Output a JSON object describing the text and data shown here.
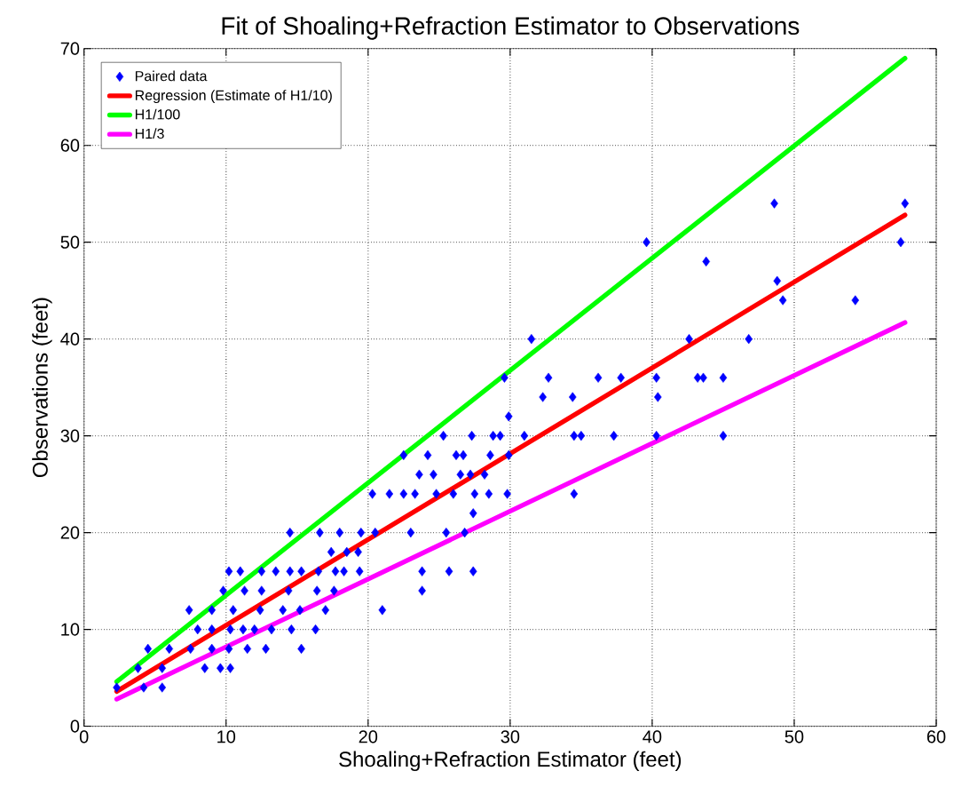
{
  "chart_data": {
    "type": "scatter",
    "title": "Fit of Shoaling+Refraction Estimator to Observations",
    "xlabel": "Shoaling+Refraction Estimator (feet)",
    "ylabel": "Observations (feet)",
    "xlim": [
      0,
      60
    ],
    "ylim": [
      0,
      70
    ],
    "xticks": [
      0,
      10,
      20,
      30,
      40,
      50,
      60
    ],
    "yticks": [
      0,
      10,
      20,
      30,
      40,
      50,
      60,
      70
    ],
    "grid": true,
    "legend": "top left",
    "series": [
      {
        "name": "Paired data",
        "marker": "diamond",
        "color": "#0000ff",
        "x": [
          48.6,
          57.8,
          39.6,
          57.5,
          43.8,
          48.8,
          49.2,
          54.3,
          31.5,
          42.6,
          46.8,
          29.6,
          32.7,
          36.2,
          37.8,
          40.3,
          43.2,
          43.6,
          45,
          32.3,
          34.4,
          40.4,
          29.9,
          25.3,
          27.3,
          28.8,
          29.3,
          31,
          34.5,
          35,
          37.3,
          40.3,
          45,
          22.5,
          24.2,
          26.2,
          26.7,
          28.6,
          29.9,
          23.6,
          24.6,
          26.5,
          27.2,
          28.2,
          20.3,
          21.5,
          22.5,
          23.3,
          24.8,
          26,
          27.5,
          28.5,
          29.8,
          34.5,
          27.4,
          14.5,
          16.6,
          18,
          19.5,
          20.5,
          23,
          25.5,
          26.8,
          17.4,
          18.5,
          19.3,
          10.2,
          11,
          12.5,
          13.5,
          14.5,
          15.3,
          16.5,
          17.7,
          18.3,
          19.4,
          23.8,
          25.7,
          27.4,
          9.8,
          11.3,
          12.5,
          14.4,
          16.4,
          17.6,
          23.8,
          7.4,
          9,
          10.5,
          12.4,
          14,
          15.2,
          17,
          21,
          8,
          9,
          10.3,
          11.2,
          12,
          13.2,
          14.6,
          16.3,
          4.5,
          6,
          7.5,
          9,
          10.2,
          11.5,
          12.8,
          15.3,
          3.8,
          5.5,
          8.5,
          9.6,
          10.3,
          2.3,
          4.2,
          5.5
        ],
        "values": [
          54,
          54,
          50,
          50,
          48,
          46,
          44,
          44,
          40,
          40,
          40,
          36,
          36,
          36,
          36,
          36,
          36,
          36,
          36,
          34,
          34,
          34,
          32,
          30,
          30,
          30,
          30,
          30,
          30,
          30,
          30,
          30,
          30,
          28,
          28,
          28,
          28,
          28,
          28,
          26,
          26,
          26,
          26,
          26,
          24,
          24,
          24,
          24,
          24,
          24,
          24,
          24,
          24,
          24,
          22,
          20,
          20,
          20,
          20,
          20,
          20,
          20,
          20,
          18,
          18,
          18,
          16,
          16,
          16,
          16,
          16,
          16,
          16,
          16,
          16,
          16,
          16,
          16,
          16,
          14,
          14,
          14,
          14,
          14,
          14,
          14,
          12,
          12,
          12,
          12,
          12,
          12,
          12,
          12,
          10,
          10,
          10,
          10,
          10,
          10,
          10,
          10,
          8,
          8,
          8,
          8,
          8,
          8,
          8,
          8,
          6,
          6,
          6,
          6,
          6,
          4,
          4,
          4
        ]
      },
      {
        "name": "Regression (Estimate of H1/10)",
        "type": "line",
        "marker": "none",
        "color": "#ff0000",
        "x": [
          2.3,
          57.8
        ],
        "values": [
          3.6,
          52.8
        ]
      },
      {
        "name": "H1/100",
        "type": "line",
        "marker": "none",
        "color": "#00ff00",
        "x": [
          2.3,
          57.8
        ],
        "values": [
          4.6,
          69
        ]
      },
      {
        "name": "H1/3",
        "type": "line",
        "marker": "none",
        "color": "#ff00ff",
        "x": [
          2.3,
          57.8
        ],
        "values": [
          2.8,
          41.7
        ]
      }
    ]
  }
}
